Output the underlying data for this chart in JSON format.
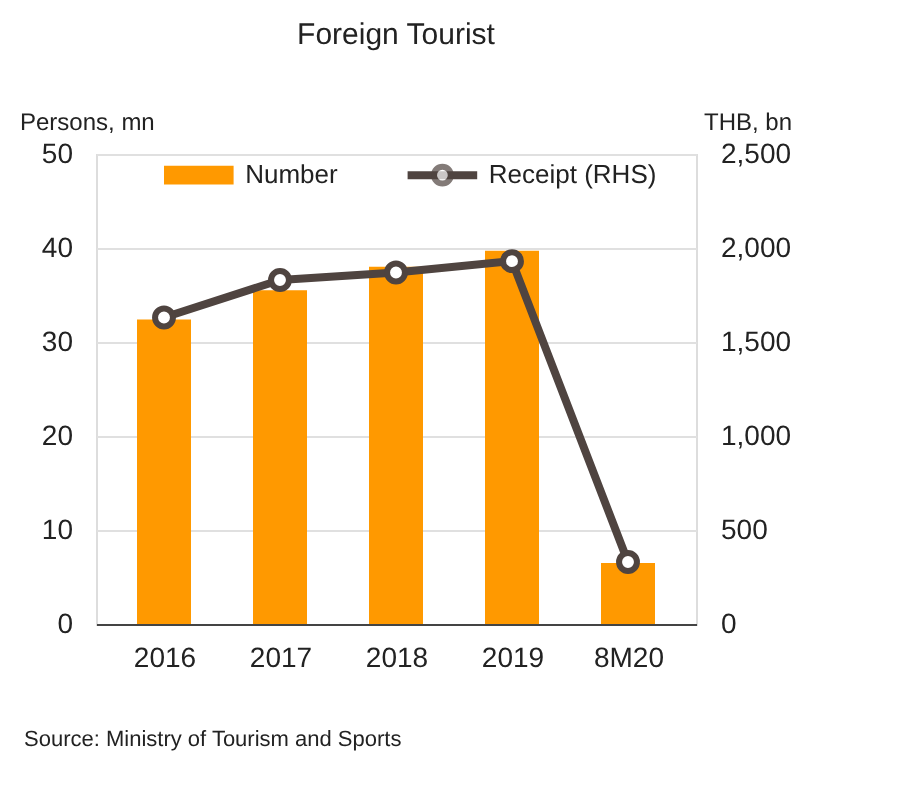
{
  "chart_data": {
    "type": "bar",
    "title": "Foreign Tourist",
    "ylabel": "Persons, mn",
    "y2label": "THB, bn",
    "categories": [
      "2016",
      "2017",
      "2018",
      "2019",
      "8M20"
    ],
    "series": [
      {
        "name": "Number",
        "color": "#ff9900",
        "values": [
          32.4,
          35.5,
          38.0,
          39.7,
          6.5
        ]
      },
      {
        "name": "Receipt (RHS)",
        "type": "line",
        "axis": "y2",
        "color": "#4f4440",
        "marker": "circle",
        "values": [
          1630,
          1830,
          1870,
          1930,
          330
        ]
      }
    ],
    "ylim": [
      0,
      50
    ],
    "yticks": [
      0,
      10,
      20,
      30,
      40,
      50
    ],
    "y2lim": [
      0,
      2500
    ],
    "y2ticks": [
      0,
      500,
      {
        "value": 1000,
        "label": "1,000"
      },
      {
        "value": 1500,
        "label": "1,500"
      },
      {
        "value": 2000,
        "label": "2,000"
      },
      {
        "value": 2500,
        "label": "2,500"
      }
    ],
    "grid": "y",
    "legend": "top",
    "annotations": [
      "Source: Ministry of Tourism and Sports"
    ]
  }
}
